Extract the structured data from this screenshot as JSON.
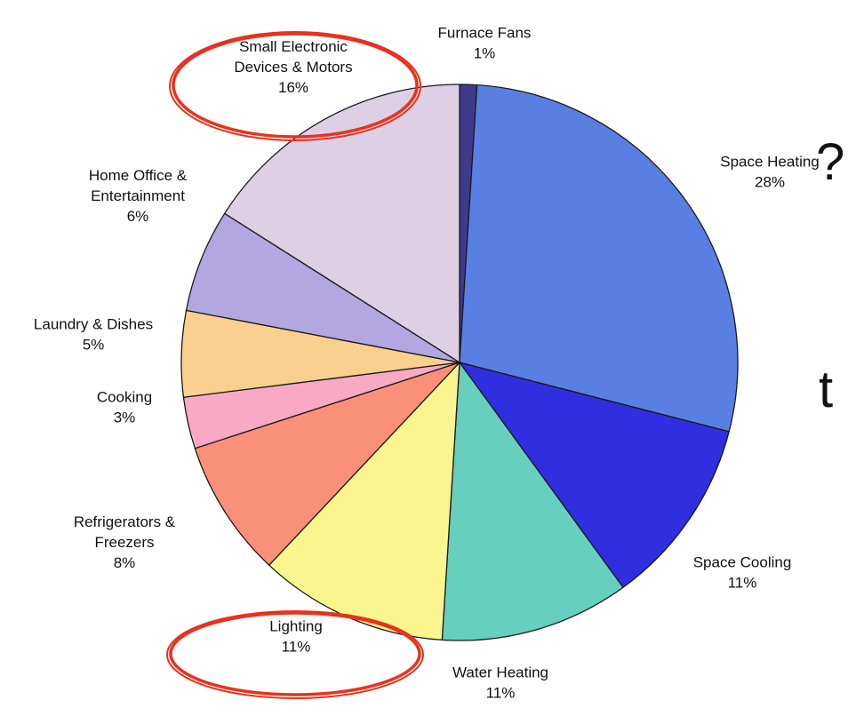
{
  "edge_glyphs": [
    "?",
    "t"
  ],
  "chart_data": {
    "type": "pie",
    "title": "",
    "slices": [
      {
        "name": "Furnace Fans",
        "label_lines": [
          "Furnace Fans",
          "1%"
        ],
        "value": 1,
        "color": "#3f3a8c"
      },
      {
        "name": "Space Heating",
        "label_lines": [
          "Space Heating",
          "28%"
        ],
        "value": 28,
        "color": "#5a7fe3"
      },
      {
        "name": "Space Cooling",
        "label_lines": [
          "Space Cooling",
          "11%"
        ],
        "value": 11,
        "color": "#2f2ee0"
      },
      {
        "name": "Water Heating",
        "label_lines": [
          "Water Heating",
          "11%"
        ],
        "value": 11,
        "color": "#66cfbd"
      },
      {
        "name": "Lighting",
        "label_lines": [
          "Lighting",
          "11%"
        ],
        "value": 11,
        "color": "#fbf58f",
        "highlighted": true
      },
      {
        "name": "Refrigerators & Freezers",
        "label_lines": [
          "Refrigerators &",
          "Freezers",
          "8%"
        ],
        "value": 8,
        "color": "#fb9078"
      },
      {
        "name": "Cooking",
        "label_lines": [
          "Cooking",
          "3%"
        ],
        "value": 3,
        "color": "#f8a9c3"
      },
      {
        "name": "Laundry & Dishes",
        "label_lines": [
          "Laundry & Dishes",
          "5%"
        ],
        "value": 5,
        "color": "#fbd08f"
      },
      {
        "name": "Home Office & Entertainment",
        "label_lines": [
          "Home Office &",
          "Entertainment",
          "6%"
        ],
        "value": 6,
        "color": "#b2a7e0"
      },
      {
        "name": "Small Electronic Devices & Motors",
        "label_lines": [
          "Small Electronic",
          "Devices & Motors",
          "16%"
        ],
        "value": 16,
        "color": "#ddd0e5",
        "highlighted": true
      }
    ],
    "start": "top, clockwise",
    "highlight_color": "#e8321e"
  }
}
